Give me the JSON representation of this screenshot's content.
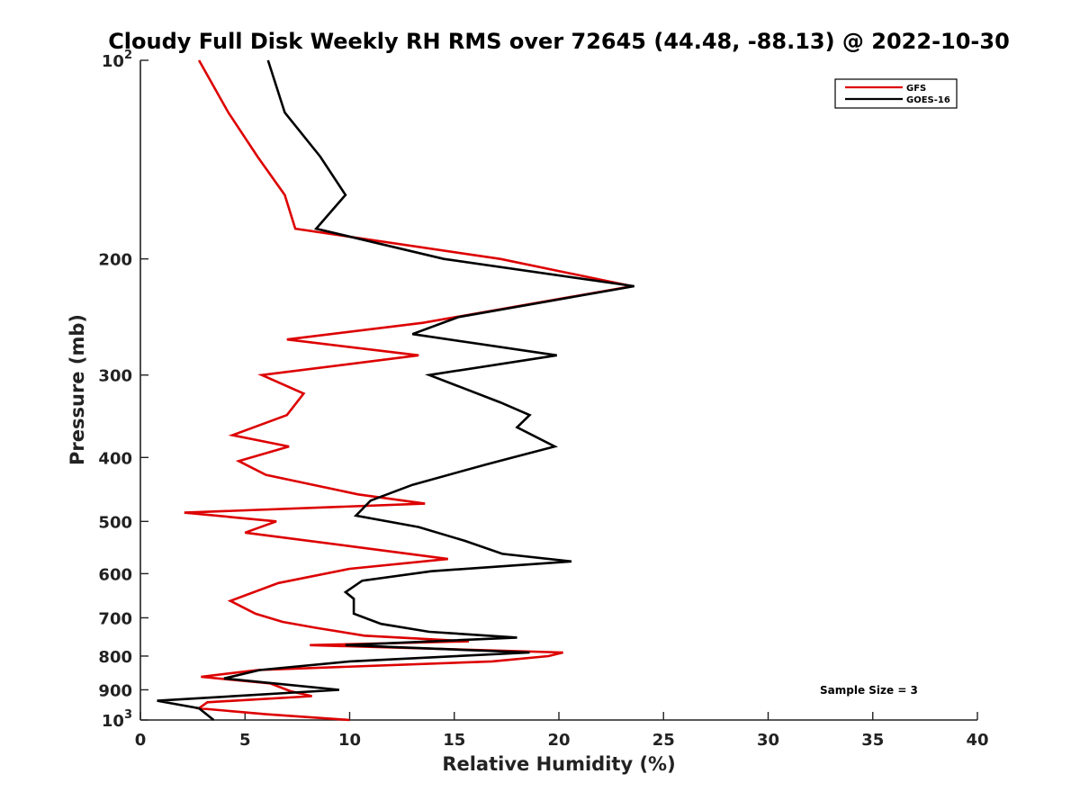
{
  "chart_data": {
    "type": "line",
    "title": "Cloudy Full Disk Weekly RH RMS over 72645 (44.48, -88.13) @ 2022-10-30",
    "xlabel": "Relative Humidity (%)",
    "ylabel": "Pressure (mb)",
    "xlim": [
      0,
      40
    ],
    "ylim": [
      100,
      1000
    ],
    "yscale": "log",
    "y_reversed": true,
    "grid": false,
    "legend_position": "top-right",
    "x_ticks": [
      "0",
      "5",
      "10",
      "15",
      "20",
      "25",
      "30",
      "35",
      "40"
    ],
    "y_ticks": [
      {
        "value": 100,
        "base": "10",
        "exp": "2"
      },
      {
        "value": 200,
        "label": "200"
      },
      {
        "value": 300,
        "label": "300"
      },
      {
        "value": 400,
        "label": "400"
      },
      {
        "value": 500,
        "label": "500"
      },
      {
        "value": 600,
        "label": "600"
      },
      {
        "value": 700,
        "label": "700"
      },
      {
        "value": 800,
        "label": "800"
      },
      {
        "value": 900,
        "label": "900"
      },
      {
        "value": 1000,
        "base": "10",
        "exp": "3"
      }
    ],
    "annotation": "Sample Size = 3",
    "series": [
      {
        "name": "GFS",
        "color": "#dd0000",
        "points": [
          [
            2.8,
            100
          ],
          [
            4.2,
            120
          ],
          [
            5.6,
            140
          ],
          [
            6.9,
            160
          ],
          [
            7.4,
            180
          ],
          [
            17.2,
            200
          ],
          [
            23.5,
            220
          ],
          [
            13.5,
            250
          ],
          [
            7.0,
            265
          ],
          [
            13.3,
            280
          ],
          [
            5.8,
            300
          ],
          [
            7.8,
            320
          ],
          [
            7.0,
            345
          ],
          [
            4.4,
            370
          ],
          [
            7.1,
            385
          ],
          [
            4.7,
            405
          ],
          [
            6.0,
            425
          ],
          [
            10.4,
            455
          ],
          [
            13.6,
            470
          ],
          [
            2.1,
            485
          ],
          [
            6.5,
            500
          ],
          [
            5.0,
            520
          ],
          [
            10.0,
            545
          ],
          [
            14.7,
            570
          ],
          [
            10.0,
            590
          ],
          [
            6.6,
            620
          ],
          [
            4.3,
            660
          ],
          [
            5.5,
            690
          ],
          [
            6.8,
            710
          ],
          [
            8.4,
            725
          ],
          [
            10.7,
            745
          ],
          [
            15.7,
            760
          ],
          [
            8.1,
            770
          ],
          [
            20.2,
            790
          ],
          [
            19.5,
            800
          ],
          [
            16.8,
            815
          ],
          [
            5.6,
            840
          ],
          [
            2.9,
            860
          ],
          [
            6.2,
            880
          ],
          [
            7.2,
            905
          ],
          [
            8.2,
            920
          ],
          [
            3.2,
            940
          ],
          [
            2.8,
            960
          ],
          [
            6.0,
            980
          ],
          [
            10.0,
            1000
          ]
        ]
      },
      {
        "name": "GOES-16",
        "color": "#000000",
        "points": [
          [
            6.1,
            100
          ],
          [
            6.9,
            120
          ],
          [
            8.6,
            140
          ],
          [
            9.8,
            160
          ],
          [
            8.4,
            180
          ],
          [
            14.5,
            200
          ],
          [
            23.6,
            220
          ],
          [
            15.2,
            245
          ],
          [
            13.0,
            260
          ],
          [
            19.9,
            280
          ],
          [
            13.8,
            300
          ],
          [
            17.2,
            330
          ],
          [
            18.6,
            345
          ],
          [
            18.0,
            360
          ],
          [
            19.8,
            385
          ],
          [
            16.5,
            410
          ],
          [
            13.0,
            440
          ],
          [
            11.0,
            465
          ],
          [
            10.3,
            490
          ],
          [
            13.3,
            510
          ],
          [
            15.5,
            535
          ],
          [
            17.3,
            560
          ],
          [
            20.6,
            575
          ],
          [
            13.9,
            595
          ],
          [
            10.6,
            615
          ],
          [
            9.8,
            640
          ],
          [
            10.2,
            655
          ],
          [
            10.2,
            690
          ],
          [
            11.5,
            715
          ],
          [
            13.8,
            735
          ],
          [
            18.0,
            750
          ],
          [
            9.8,
            770
          ],
          [
            18.6,
            790
          ],
          [
            10.0,
            815
          ],
          [
            5.7,
            840
          ],
          [
            4.0,
            865
          ],
          [
            9.5,
            900
          ],
          [
            0.8,
            935
          ],
          [
            2.8,
            960
          ],
          [
            3.5,
            1000
          ]
        ]
      }
    ]
  }
}
